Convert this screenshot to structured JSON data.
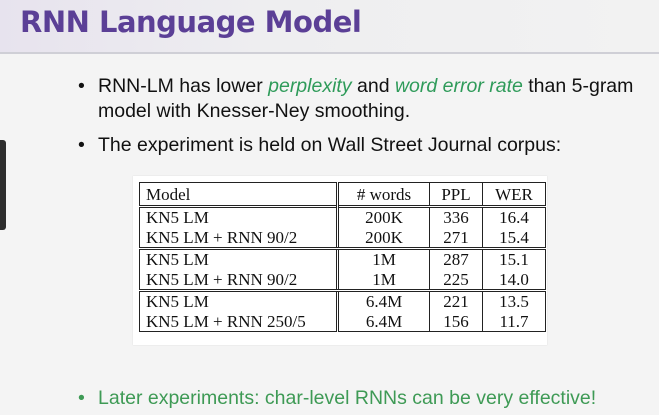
{
  "slide": {
    "title": "RNN Language Model",
    "bullets": [
      {
        "parts": [
          "RNN-LM has lower ",
          "perplexity",
          " and ",
          "word error rate",
          " than 5-gram model with Knesser-Ney smoothing."
        ]
      },
      {
        "parts": [
          "The experiment is held on Wall Street Journal corpus:"
        ]
      }
    ],
    "footer_bullet": "Later experiments: char-level RNNs can be very effective!",
    "bullet_glyph": "•"
  },
  "table": {
    "headers": [
      "Model",
      "# words",
      "PPL",
      "WER"
    ],
    "rows": [
      [
        "KN5 LM",
        "200K",
        "336",
        "16.4"
      ],
      [
        "KN5 LM + RNN 90/2",
        "200K",
        "271",
        "15.4"
      ],
      [
        "KN5 LM",
        "1M",
        "287",
        "15.1"
      ],
      [
        "KN5 LM + RNN 90/2",
        "1M",
        "225",
        "14.0"
      ],
      [
        "KN5 LM",
        "6.4M",
        "221",
        "13.5"
      ],
      [
        "KN5 LM + RNN 250/5",
        "6.4M",
        "156",
        "11.7"
      ]
    ]
  },
  "colors": {
    "title": "#5b3f96",
    "emphasis": "#2f9b5a",
    "footer": "#3e9a55"
  }
}
